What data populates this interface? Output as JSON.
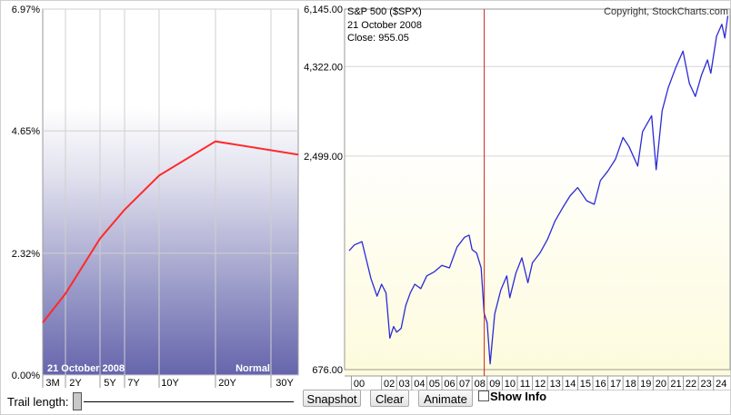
{
  "chart_data": [
    {
      "type": "line",
      "title": "",
      "ylim": [
        0,
        6.97
      ],
      "y_ticks": [
        "6.97%",
        "4.65%",
        "2.32%",
        "0.00%"
      ],
      "y_tick_values": [
        6.97,
        4.65,
        2.32,
        0
      ],
      "categories": [
        "3M",
        "2Y",
        "5Y",
        "7Y",
        "10Y",
        "20Y",
        "30Y"
      ],
      "maturity_years": [
        0.25,
        2,
        5,
        7,
        10,
        20,
        30
      ],
      "series": [
        {
          "values": [
            1.0,
            1.55,
            2.6,
            3.15,
            3.8,
            4.45,
            4.2
          ],
          "color": "#ff2a2a"
        }
      ],
      "date_label": "21  October 2008",
      "curve_label": "Normal",
      "grid": true
    },
    {
      "type": "line",
      "title": "S&P 500 ($SPX)",
      "copyright": "Copyright, StockCharts.com",
      "info": {
        "date": "21  October 2008",
        "close": "Close: 955.05"
      },
      "y_scale": "log",
      "ylim": [
        676,
        6145
      ],
      "y_ticks": [
        "6,145.00",
        "4,322.00",
        "2,499.00",
        "676.00"
      ],
      "y_tick_values": [
        6145,
        4322,
        2499,
        676
      ],
      "x_ticks": [
        "00",
        "02",
        "03",
        "04",
        "05",
        "06",
        "07",
        "08",
        "09",
        "10",
        "11",
        "12",
        "13",
        "14",
        "15",
        "16",
        "17",
        "18",
        "19",
        "20",
        "21",
        "22",
        "23",
        "24"
      ],
      "x_tick_years": [
        2000,
        2002,
        2003,
        2004,
        2005,
        2006,
        2007,
        2008,
        2009,
        2010,
        2011,
        2012,
        2013,
        2014,
        2015,
        2016,
        2017,
        2018,
        2019,
        2020,
        2021,
        2022,
        2023,
        2024
      ],
      "cursor_date": "2008-10-21",
      "series": [
        {
          "color": "#2b2bd6",
          "points": [
            [
              1999.85,
              1400
            ],
            [
              2000.2,
              1450
            ],
            [
              2000.7,
              1480
            ],
            [
              2001.0,
              1320
            ],
            [
              2001.3,
              1180
            ],
            [
              2001.7,
              1060
            ],
            [
              2002.0,
              1140
            ],
            [
              2002.3,
              1080
            ],
            [
              2002.55,
              820
            ],
            [
              2002.8,
              880
            ],
            [
              2003.0,
              850
            ],
            [
              2003.3,
              870
            ],
            [
              2003.6,
              1000
            ],
            [
              2003.9,
              1080
            ],
            [
              2004.2,
              1140
            ],
            [
              2004.6,
              1110
            ],
            [
              2005.0,
              1200
            ],
            [
              2005.5,
              1230
            ],
            [
              2006.0,
              1280
            ],
            [
              2006.5,
              1260
            ],
            [
              2007.0,
              1430
            ],
            [
              2007.5,
              1520
            ],
            [
              2007.8,
              1540
            ],
            [
              2008.0,
              1410
            ],
            [
              2008.3,
              1380
            ],
            [
              2008.6,
              1260
            ],
            [
              2008.8,
              955
            ],
            [
              2009.0,
              900
            ],
            [
              2009.2,
              700
            ],
            [
              2009.5,
              950
            ],
            [
              2009.9,
              1100
            ],
            [
              2010.3,
              1200
            ],
            [
              2010.5,
              1050
            ],
            [
              2010.9,
              1220
            ],
            [
              2011.3,
              1340
            ],
            [
              2011.7,
              1150
            ],
            [
              2012.0,
              1300
            ],
            [
              2012.5,
              1380
            ],
            [
              2013.0,
              1500
            ],
            [
              2013.5,
              1680
            ],
            [
              2014.0,
              1820
            ],
            [
              2014.5,
              1960
            ],
            [
              2015.0,
              2060
            ],
            [
              2015.6,
              1900
            ],
            [
              2016.1,
              1860
            ],
            [
              2016.5,
              2150
            ],
            [
              2017.0,
              2280
            ],
            [
              2017.5,
              2450
            ],
            [
              2018.0,
              2800
            ],
            [
              2018.4,
              2650
            ],
            [
              2018.98,
              2350
            ],
            [
              2019.3,
              2900
            ],
            [
              2019.9,
              3200
            ],
            [
              2020.2,
              2300
            ],
            [
              2020.6,
              3300
            ],
            [
              2021.0,
              3800
            ],
            [
              2021.5,
              4300
            ],
            [
              2021.98,
              4750
            ],
            [
              2022.4,
              3900
            ],
            [
              2022.8,
              3600
            ],
            [
              2023.2,
              4100
            ],
            [
              2023.6,
              4500
            ],
            [
              2023.82,
              4150
            ],
            [
              2024.2,
              5200
            ],
            [
              2024.55,
              5600
            ],
            [
              2024.75,
              5150
            ],
            [
              2024.95,
              5900
            ]
          ]
        }
      ],
      "grid": true
    }
  ],
  "controls": {
    "trail_label": "Trail length:",
    "snapshot": "Snapshot",
    "clear": "Clear",
    "animate": "Animate",
    "show_info": "Show Info"
  }
}
